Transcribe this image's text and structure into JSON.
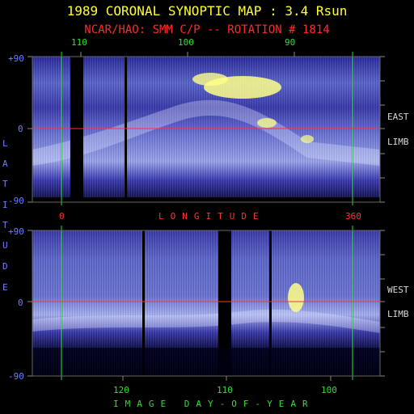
{
  "title": "1989 CORONAL SYNOPTIC MAP : 3.4 Rsun",
  "subtitle": "NCAR/HAO: SMM C/P -- ROTATION # 1814",
  "top_ticks": [
    "110",
    "100",
    "90"
  ],
  "bottom_ticks": [
    "120",
    "110",
    "100"
  ],
  "lat_ticks": [
    "+90",
    "0",
    "-90"
  ],
  "lat_ticks_lower": [
    "+90",
    "0",
    "-90"
  ],
  "lon_ticks": [
    "0",
    "360"
  ],
  "axis_labels": {
    "latitude": [
      "L",
      "A",
      "T",
      "I",
      "T",
      "U",
      "D",
      "E"
    ],
    "longitude": "LONGITUDE",
    "day_of_year": "IMAGE DAY-OF-YEAR"
  },
  "limb_labels": {
    "east": "EAST",
    "east_limb": "LIMB",
    "west": "WEST",
    "west_limb": "LIMB"
  },
  "colors": {
    "title": "#ffff33",
    "subtitle": "#ff2a2a",
    "green_marker": "#33dd33",
    "equator": "#ff3333",
    "axis_text": "#6f7fff",
    "limb_text": "#d8d8d8",
    "low_intensity": "#1a1a8c",
    "high_intensity": "#ffff88"
  },
  "chart_data": [
    {
      "type": "heatmap",
      "panel": "east-limb",
      "ylim": [
        -90,
        90
      ],
      "gaps": 2,
      "bright_features": [
        "streamer belt",
        "yellow peak near +60"
      ]
    },
    {
      "type": "heatmap",
      "panel": "west-limb",
      "ylim": [
        -90,
        90
      ],
      "gaps": 3,
      "bright_features": [
        "yellow peak near 0"
      ]
    }
  ]
}
